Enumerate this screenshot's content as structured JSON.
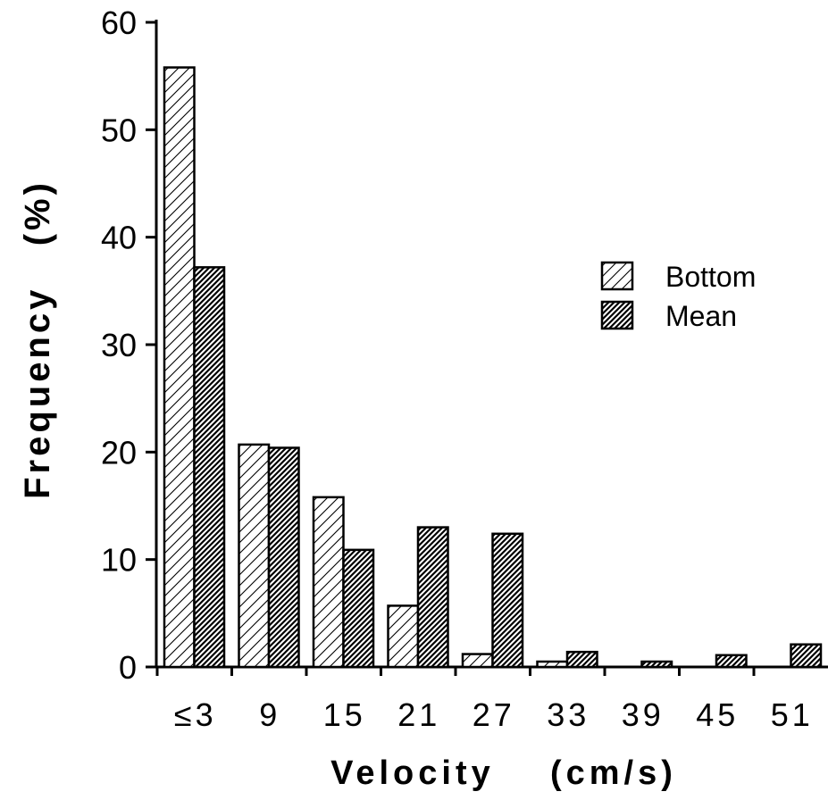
{
  "chart_data": {
    "type": "bar",
    "title": "",
    "xlabel": "Velocity    (cm/s)",
    "ylabel": "Frequency   (%)",
    "categories": [
      "≤3",
      "9",
      "15",
      "21",
      "27",
      "33",
      "39",
      "45",
      "51"
    ],
    "ylim": [
      0,
      60
    ],
    "yticks": [
      0,
      10,
      20,
      30,
      40,
      50,
      60
    ],
    "series": [
      {
        "name": "Bottom",
        "pattern": "light-hatch",
        "values": [
          55.8,
          20.7,
          15.8,
          5.7,
          1.2,
          0.5,
          0,
          0,
          0
        ]
      },
      {
        "name": "Mean",
        "pattern": "dark-hatch",
        "values": [
          37.2,
          20.4,
          10.9,
          13.0,
          12.4,
          1.4,
          0.5,
          1.1,
          2.1
        ]
      }
    ],
    "legend_position": "right",
    "grid": false
  }
}
